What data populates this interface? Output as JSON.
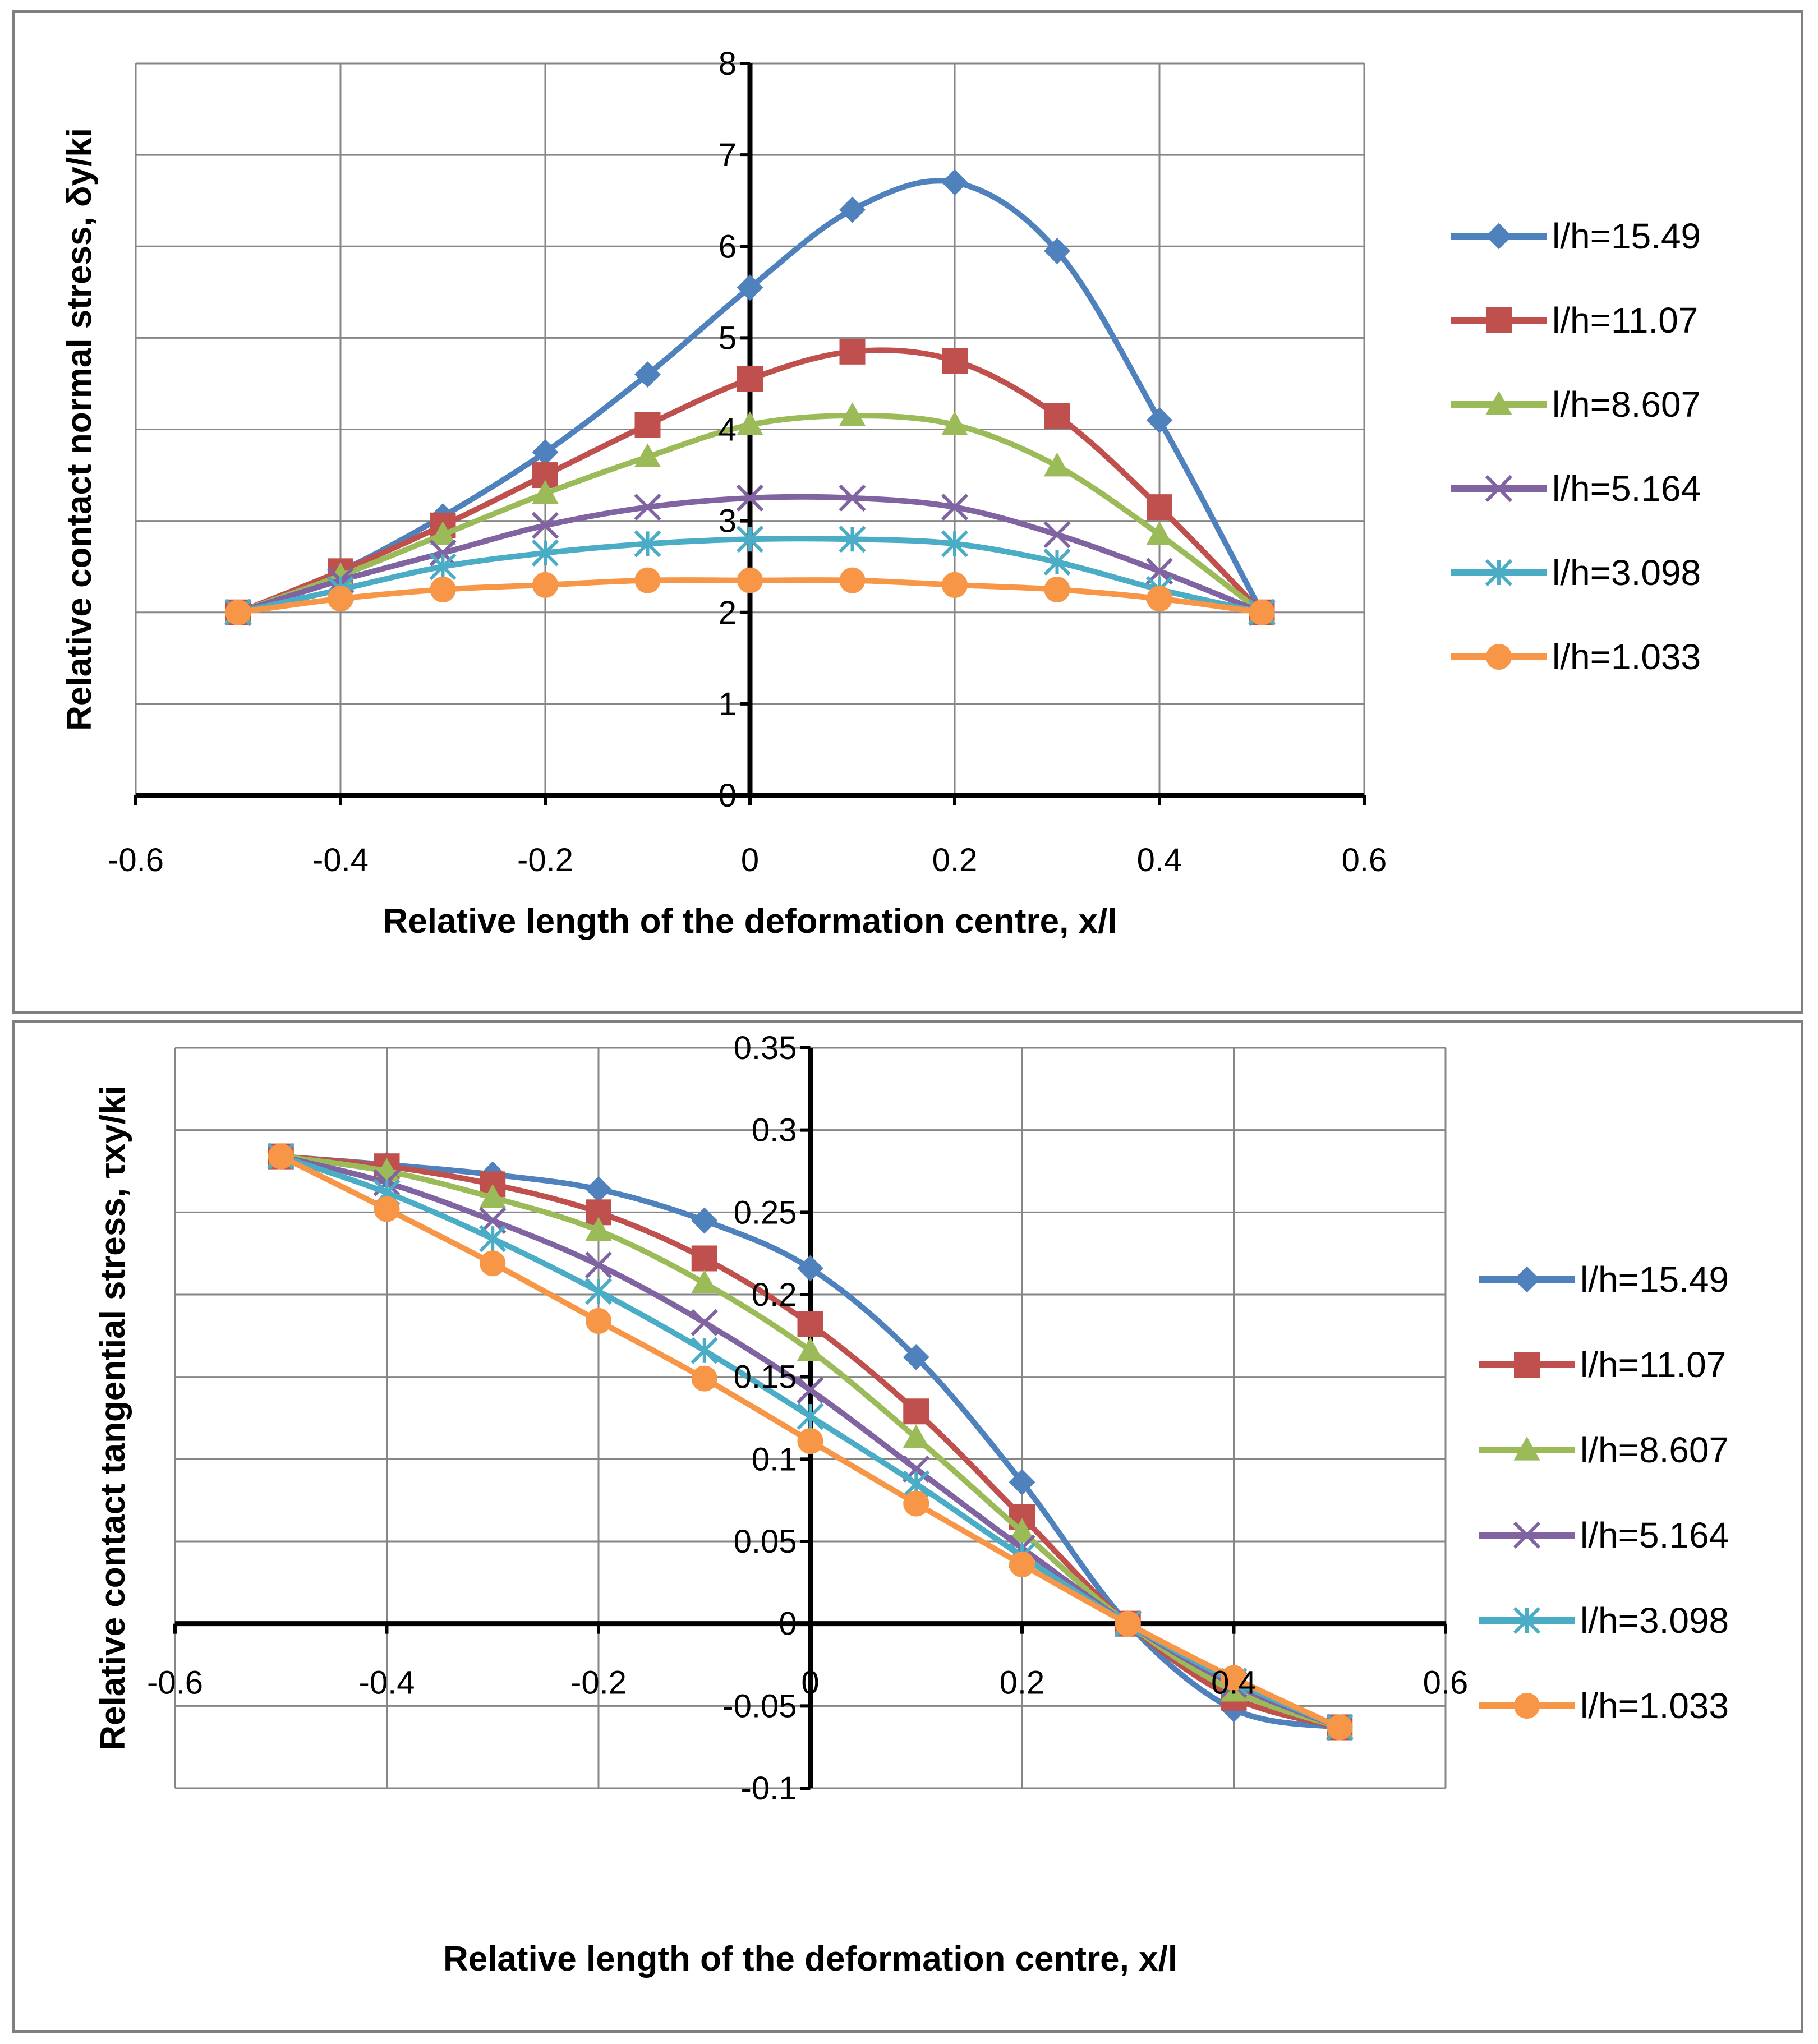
{
  "chart_data": [
    {
      "type": "line",
      "xlabel": "Relative length of the deformation centre, x/l",
      "ylabel": "Relative contact normal  stress, δy/ki",
      "xlim": [
        -0.6,
        0.6
      ],
      "ylim": [
        0,
        8
      ],
      "xticks": [
        -0.6,
        -0.4,
        -0.2,
        0,
        0.2,
        0.4,
        0.6
      ],
      "xtick_labels": [
        "-0.6",
        "-0.4",
        "-0.2",
        "0",
        "0.2",
        "0.4",
        "0.6"
      ],
      "yticks": [
        0,
        1,
        2,
        3,
        4,
        5,
        6,
        7,
        8
      ],
      "ytick_labels": [
        "0",
        "1",
        "2",
        "3",
        "4",
        "5",
        "6",
        "7",
        "8"
      ],
      "grid": true,
      "legend_position": "right",
      "x": [
        -0.5,
        -0.4,
        -0.3,
        -0.2,
        -0.1,
        0,
        0.1,
        0.2,
        0.3,
        0.4,
        0.5
      ],
      "series": [
        {
          "name": "l/h=15.49",
          "color": "#4f81bd",
          "marker": "diamond",
          "values": [
            2.0,
            2.45,
            3.05,
            3.75,
            4.6,
            5.55,
            6.4,
            6.7,
            5.95,
            4.1,
            2.0
          ]
        },
        {
          "name": "l/h=11.07",
          "color": "#c0504d",
          "marker": "square",
          "values": [
            2.0,
            2.45,
            2.95,
            3.5,
            4.05,
            4.55,
            4.85,
            4.75,
            4.15,
            3.15,
            2.0
          ]
        },
        {
          "name": "l/h=8.607",
          "color": "#9bbb59",
          "marker": "triangle",
          "values": [
            2.0,
            2.4,
            2.85,
            3.3,
            3.7,
            4.05,
            4.15,
            4.05,
            3.6,
            2.85,
            2.0
          ]
        },
        {
          "name": "l/h=5.164",
          "color": "#8064a2",
          "marker": "x",
          "values": [
            2.0,
            2.35,
            2.65,
            2.95,
            3.15,
            3.25,
            3.25,
            3.15,
            2.85,
            2.45,
            2.0
          ]
        },
        {
          "name": "l/h=3.098",
          "color": "#4bacc6",
          "marker": "star",
          "values": [
            2.0,
            2.25,
            2.5,
            2.65,
            2.75,
            2.8,
            2.8,
            2.75,
            2.55,
            2.25,
            2.0
          ]
        },
        {
          "name": "l/h=1.033",
          "color": "#f79646",
          "marker": "circle",
          "values": [
            2.0,
            2.15,
            2.25,
            2.3,
            2.35,
            2.35,
            2.35,
            2.3,
            2.25,
            2.15,
            2.0
          ]
        }
      ]
    },
    {
      "type": "line",
      "xlabel": "Relative length of the deformation centre, x/l",
      "ylabel": "Relative contact tangential stress, τxy/ki",
      "xlim": [
        -0.6,
        0.6
      ],
      "ylim": [
        -0.1,
        0.35
      ],
      "xticks": [
        -0.6,
        -0.4,
        -0.2,
        0,
        0.2,
        0.4,
        0.6
      ],
      "xtick_labels": [
        "-0.6",
        "-0.4",
        "-0.2",
        "0",
        "0.2",
        "0.4",
        "0.6"
      ],
      "yticks": [
        -0.1,
        -0.05,
        0,
        0.05,
        0.1,
        0.15,
        0.2,
        0.25,
        0.3,
        0.35
      ],
      "ytick_labels": [
        "-0.1",
        "-0.05",
        "0",
        "0.05",
        "0.1",
        "0.15",
        "0.2",
        "0.25",
        "0.3",
        "0.35"
      ],
      "grid": true,
      "legend_position": "right",
      "x": [
        -0.5,
        -0.4,
        -0.3,
        -0.2,
        -0.1,
        0,
        0.1,
        0.2,
        0.3,
        0.4,
        0.5
      ],
      "series": [
        {
          "name": "l/h=15.49",
          "color": "#4f81bd",
          "marker": "diamond",
          "values": [
            0.284,
            0.279,
            0.273,
            0.264,
            0.245,
            0.216,
            0.162,
            0.086,
            0.0,
            -0.052,
            -0.063
          ]
        },
        {
          "name": "l/h=11.07",
          "color": "#c0504d",
          "marker": "square",
          "values": [
            0.284,
            0.278,
            0.267,
            0.25,
            0.222,
            0.182,
            0.129,
            0.065,
            0.0,
            -0.045,
            -0.063
          ]
        },
        {
          "name": "l/h=8.607",
          "color": "#9bbb59",
          "marker": "triangle",
          "values": [
            0.284,
            0.275,
            0.259,
            0.239,
            0.207,
            0.166,
            0.113,
            0.056,
            0.0,
            -0.041,
            -0.063
          ]
        },
        {
          "name": "l/h=5.164",
          "color": "#8064a2",
          "marker": "x",
          "values": [
            0.284,
            0.268,
            0.245,
            0.218,
            0.183,
            0.142,
            0.094,
            0.046,
            0.0,
            -0.037,
            -0.063
          ]
        },
        {
          "name": "l/h=3.098",
          "color": "#4bacc6",
          "marker": "star",
          "values": [
            0.284,
            0.262,
            0.234,
            0.202,
            0.166,
            0.126,
            0.085,
            0.041,
            0.0,
            -0.035,
            -0.063
          ]
        },
        {
          "name": "l/h=1.033",
          "color": "#f79646",
          "marker": "circle",
          "values": [
            0.284,
            0.252,
            0.219,
            0.184,
            0.149,
            0.111,
            0.073,
            0.036,
            0.0,
            -0.033,
            -0.063
          ]
        }
      ]
    }
  ]
}
